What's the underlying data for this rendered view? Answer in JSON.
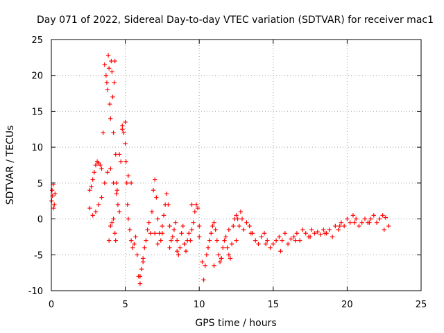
{
  "chart_data": {
    "type": "scatter",
    "title": "Day 071 of 2022, Sidereal Day-to-day VTEC variation (SDTVAR) for receiver mac1",
    "xlabel": "GPS time / hours",
    "ylabel": "SDTVAR / TECUs",
    "xlim": [
      0,
      25
    ],
    "ylim": [
      -10,
      25
    ],
    "grid": true,
    "marker": "+",
    "color": "#ff0000",
    "x_ticks": [
      0,
      5,
      10,
      15,
      20,
      25
    ],
    "y_ticks": [
      -10,
      -5,
      0,
      5,
      10,
      15,
      20,
      25
    ],
    "x_tick_labels": [
      "0",
      "5",
      "10",
      "15",
      "20",
      "25"
    ],
    "y_tick_labels": [
      "-10",
      "-5",
      "0",
      "5",
      "10",
      "15",
      "20",
      "25"
    ],
    "series": [
      {
        "name": "SDTVAR",
        "x": [
          0.02,
          0.05,
          0.08,
          0.12,
          0.15,
          0.2,
          0.25,
          2.6,
          2.7,
          2.8,
          2.9,
          3.0,
          3.1,
          3.2,
          3.3,
          3.4,
          3.5,
          3.6,
          3.7,
          3.75,
          3.8,
          3.85,
          3.9,
          3.95,
          4.0,
          4.05,
          4.1,
          4.15,
          4.2,
          4.25,
          4.3,
          4.35,
          4.4,
          4.5,
          4.6,
          4.7,
          4.8,
          4.9,
          5.0,
          5.05,
          5.1,
          5.15,
          5.2,
          5.3,
          5.4,
          5.5,
          5.6,
          5.7,
          5.8,
          5.9,
          6.0,
          6.1,
          6.2,
          6.3,
          6.4,
          6.5,
          6.6,
          6.7,
          6.8,
          6.9,
          7.0,
          7.1,
          7.2,
          7.3,
          7.4,
          7.5,
          7.6,
          7.7,
          7.8,
          7.9,
          8.0,
          8.1,
          8.2,
          8.3,
          8.4,
          8.5,
          8.6,
          8.7,
          8.8,
          8.9,
          9.0,
          9.1,
          9.2,
          9.3,
          9.4,
          9.5,
          9.6,
          9.7,
          9.8,
          9.9,
          10.0,
          10.2,
          10.3,
          10.4,
          10.5,
          10.6,
          10.7,
          10.8,
          10.9,
          11.0,
          11.1,
          11.2,
          11.3,
          11.4,
          11.5,
          11.6,
          11.7,
          11.8,
          11.9,
          12.0,
          12.1,
          12.2,
          12.3,
          12.4,
          12.5,
          12.6,
          12.7,
          12.8,
          12.9,
          13.0,
          13.2,
          13.4,
          13.6,
          13.8,
          14.0,
          14.2,
          14.4,
          14.6,
          14.8,
          15.0,
          15.2,
          15.4,
          15.6,
          15.8,
          16.0,
          16.2,
          16.4,
          16.6,
          16.8,
          17.0,
          17.2,
          17.4,
          17.6,
          17.8,
          18.0,
          18.2,
          18.4,
          18.6,
          18.8,
          19.0,
          19.2,
          19.4,
          19.6,
          19.8,
          20.0,
          20.2,
          20.4,
          20.6,
          20.8,
          21.0,
          21.2,
          21.4,
          21.6,
          21.8,
          22.0,
          22.2,
          22.4,
          22.6,
          22.8,
          2.6,
          2.8,
          3.0,
          3.2,
          3.4,
          3.6,
          3.8,
          4.0,
          4.2,
          4.4,
          3.9,
          4.0,
          4.1,
          4.2,
          4.3,
          4.35,
          4.45,
          4.6,
          4.8,
          5.0,
          5.2,
          5.4,
          6.0,
          6.2,
          7.0,
          7.2,
          7.5,
          8.0,
          8.5,
          9.0,
          9.5,
          10.0,
          11.0,
          11.5,
          12.0,
          12.5,
          13.5,
          14.5,
          15.5,
          16.5,
          17.5,
          18.5,
          19.5,
          20.5,
          21.5,
          22.5
        ],
        "y": [
          2.5,
          4.0,
          3.2,
          4.8,
          1.5,
          2.0,
          3.5,
          4.0,
          4.5,
          5.5,
          6.5,
          7.5,
          8.0,
          7.8,
          7.5,
          7.0,
          12.0,
          21.5,
          20.0,
          19.0,
          18.0,
          22.8,
          21.0,
          16.0,
          14.0,
          22.0,
          20.5,
          17.0,
          12.0,
          19.0,
          22.0,
          9.0,
          5.0,
          2.0,
          1.0,
          8.0,
          13.0,
          12.0,
          10.5,
          8.0,
          5.0,
          2.0,
          0.0,
          -1.5,
          -3.0,
          -4.0,
          -3.5,
          -2.5,
          -5.0,
          -8.0,
          -9.0,
          -7.0,
          -5.5,
          -4.0,
          -3.0,
          -1.5,
          -0.5,
          -2.0,
          1.0,
          4.0,
          5.5,
          3.0,
          0.0,
          -2.0,
          -3.0,
          -2.0,
          0.5,
          2.0,
          3.5,
          2.0,
          -1.0,
          -3.0,
          -2.5,
          -1.5,
          -0.5,
          -3.0,
          -5.0,
          -4.0,
          -2.0,
          -1.0,
          -3.5,
          -4.5,
          -3.0,
          -2.0,
          -3.0,
          -1.5,
          -0.5,
          1.0,
          2.0,
          1.5,
          -1.0,
          -6.0,
          -8.5,
          -6.5,
          -5.0,
          -4.0,
          -3.0,
          -2.0,
          -1.0,
          -0.5,
          -1.5,
          -3.0,
          -5.0,
          -6.0,
          -5.5,
          -4.0,
          -3.0,
          -2.5,
          -4.0,
          -5.0,
          -5.5,
          -3.5,
          -1.0,
          0.0,
          0.5,
          0.0,
          -1.0,
          1.0,
          0.0,
          -1.5,
          -0.5,
          -1.0,
          -2.0,
          -3.0,
          -3.5,
          -2.5,
          -2.0,
          -3.0,
          -4.0,
          -3.5,
          -3.0,
          -2.5,
          -3.0,
          -2.0,
          -3.5,
          -2.8,
          -2.5,
          -2.0,
          -3.0,
          -1.5,
          -2.0,
          -2.5,
          -1.5,
          -2.0,
          -1.8,
          -2.2,
          -1.5,
          -2.0,
          -1.5,
          -2.5,
          -1.0,
          -1.5,
          -0.5,
          -1.0,
          0.0,
          -0.5,
          0.5,
          0.0,
          -1.0,
          -0.5,
          0.0,
          -0.5,
          0.0,
          0.5,
          -0.5,
          0.0,
          0.5,
          0.2,
          -1.0,
          1.5,
          0.5,
          1.0,
          2.0,
          3.0,
          5.0,
          6.5,
          7.0,
          5.0,
          3.5,
          -3.0,
          -1.0,
          -0.5,
          0.0,
          -2.0,
          -3.0,
          4.0,
          9.0,
          12.5,
          13.5,
          6.0,
          5.0,
          -8.0,
          -6.0,
          -2.0,
          -3.5,
          -1.0,
          -4.0,
          -4.5,
          -3.5,
          2.0,
          -2.5,
          -6.5,
          -5.5,
          -1.5,
          -3.0,
          -2.0,
          -3.5,
          -4.5,
          -3.0,
          -2.5,
          -2.0,
          -1.0,
          -0.5,
          -0.5,
          -1.5
        ]
      }
    ]
  }
}
